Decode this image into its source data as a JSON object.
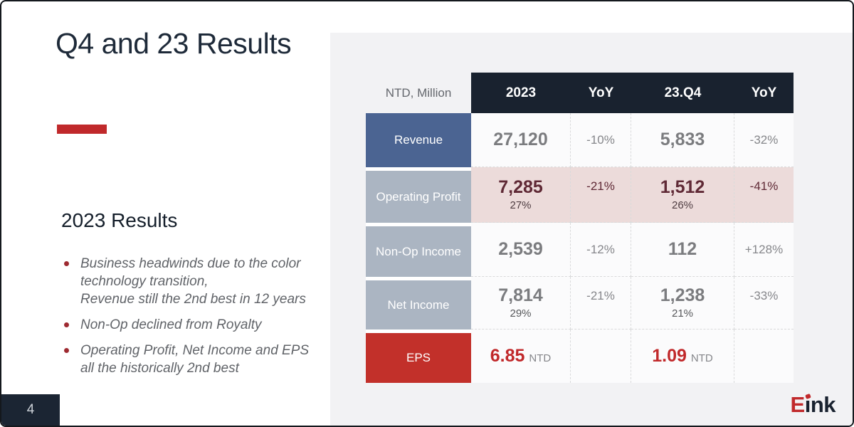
{
  "slide": {
    "title": "Q4 and 23 Results",
    "section_heading": "2023 Results",
    "bullets": [
      {
        "lines": [
          "Business headwinds due to the color",
          "technology transition,",
          "Revenue still the 2nd best in 12 years"
        ]
      },
      {
        "lines": [
          "Non-Op declined from Royalty"
        ]
      },
      {
        "lines": [
          "Operating Profit, Net Income and EPS",
          "all the historically 2nd best"
        ]
      }
    ],
    "page_number": "4",
    "logo": {
      "e": "E",
      "ink": "ınk"
    }
  },
  "table": {
    "unit_label": "NTD, Million",
    "columns": [
      "2023",
      "YoY",
      "23.Q4",
      "YoY"
    ],
    "rows": [
      {
        "label": "Revenue",
        "y2023": "27,120",
        "yoy_2023": "-10%",
        "q4": "5,833",
        "yoy_q4": "-32%"
      },
      {
        "label": "Operating Profit",
        "y2023": "7,285",
        "y2023_margin": "27%",
        "yoy_2023": "-21%",
        "q4": "1,512",
        "q4_margin": "26%",
        "yoy_q4": "-41%"
      },
      {
        "label": "Non-Op Income",
        "y2023": "2,539",
        "yoy_2023": "-12%",
        "q4": "112",
        "yoy_q4": "+128%"
      },
      {
        "label": "Net Income",
        "y2023": "7,814",
        "y2023_margin": "29%",
        "yoy_2023": "-21%",
        "q4": "1,238",
        "q4_margin": "21%",
        "yoy_q4": "-33%"
      },
      {
        "label": "EPS",
        "y2023": "6.85",
        "y2023_unit": "NTD",
        "q4": "1.09",
        "q4_unit": "NTD"
      }
    ]
  },
  "colors": {
    "accent_red": "#c0292b",
    "eps_red": "#c1292b",
    "header_navy": "#19222f",
    "revenue_blue": "#4b6492",
    "label_gray": "#abb5c2",
    "highlight_pink": "#ecdbda",
    "maroon_value": "#5f2935",
    "panel_gray": "#f2f2f4"
  }
}
